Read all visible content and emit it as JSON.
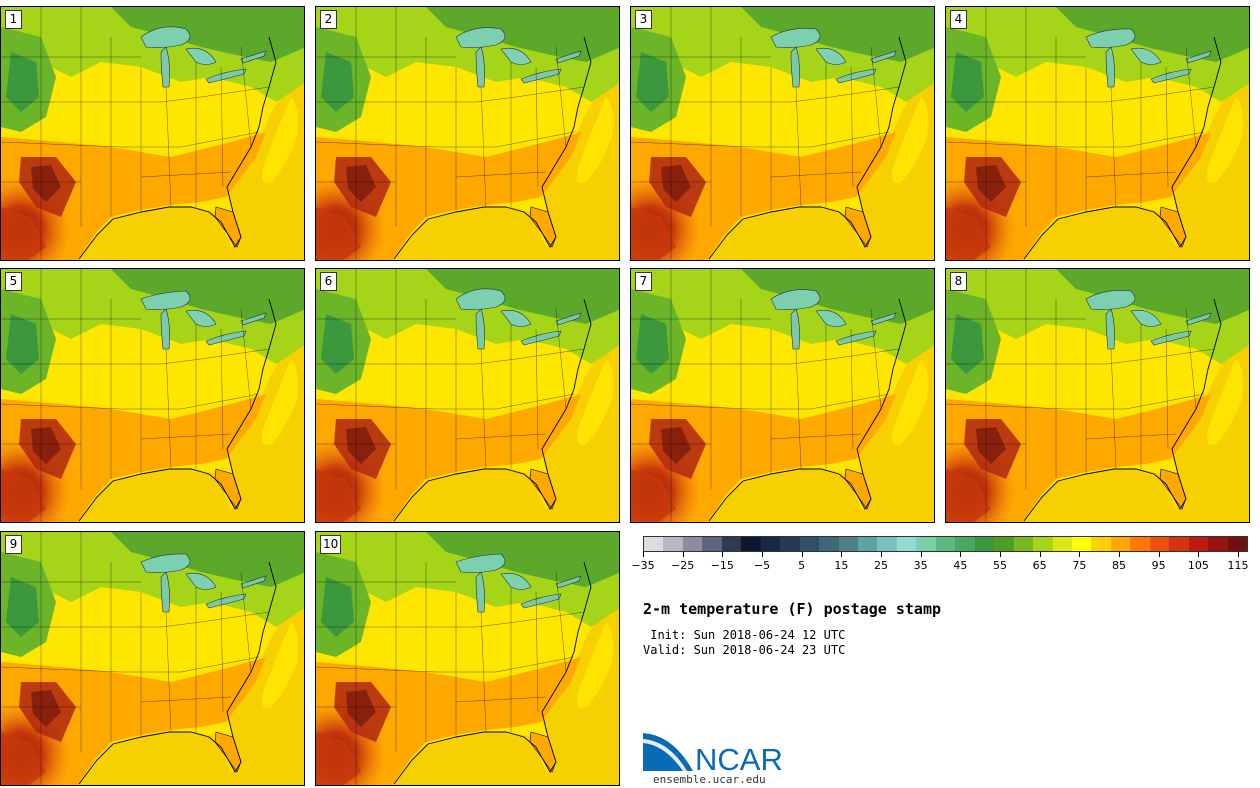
{
  "panels": [
    {
      "label": "1"
    },
    {
      "label": "2"
    },
    {
      "label": "3"
    },
    {
      "label": "4"
    },
    {
      "label": "5"
    },
    {
      "label": "6"
    },
    {
      "label": "7"
    },
    {
      "label": "8"
    },
    {
      "label": "9"
    },
    {
      "label": "10"
    }
  ],
  "colorbar": {
    "colors": [
      "#dcdcdc",
      "#b8b8c4",
      "#8c8ca4",
      "#5c6680",
      "#2c3a54",
      "#0c1830",
      "#182844",
      "#243c58",
      "#305068",
      "#406878",
      "#508088",
      "#60a0a8",
      "#7cc0c0",
      "#90dcd0",
      "#7cd0a8",
      "#5cb880",
      "#48a860",
      "#3c983c",
      "#509c28",
      "#78b820",
      "#a8d418",
      "#d8e810",
      "#ffff00",
      "#ffd000",
      "#ffa800",
      "#ff7800",
      "#f05010",
      "#d83010",
      "#b81c10",
      "#941410",
      "#701010"
    ],
    "tick_labels": [
      "−35",
      "−25",
      "−15",
      "−5",
      "5",
      "15",
      "25",
      "35",
      "45",
      "55",
      "65",
      "75",
      "85",
      "95",
      "105",
      "115"
    ]
  },
  "title": "2-m temperature (F) postage stamp",
  "init_label": " Init: Sun 2018-06-24 12 UTC",
  "valid_label": "Valid: Sun 2018-06-24 23 UTC",
  "logo": {
    "text": "NCAR",
    "url": "ensemble.ucar.edu",
    "color": "#0a6bb5"
  }
}
